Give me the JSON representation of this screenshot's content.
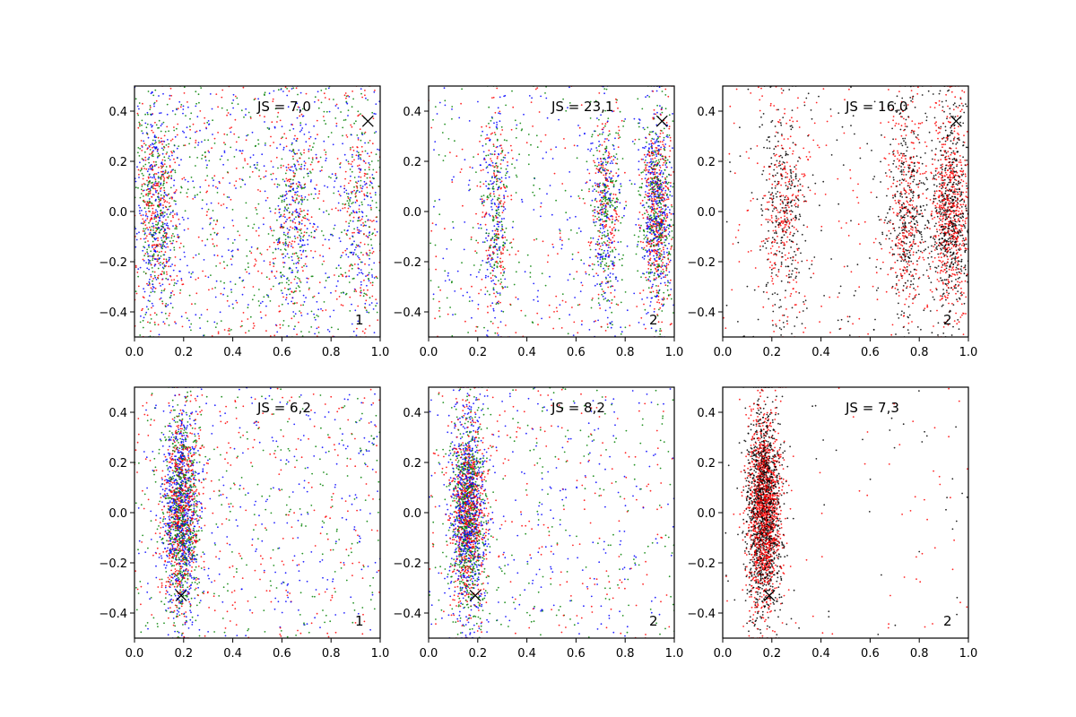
{
  "chart_data": [
    {
      "type": "scatter",
      "annotation": "JS = 7,0",
      "corner_label": "1",
      "xlim": [
        0.0,
        1.0
      ],
      "ylim": [
        -0.5,
        0.5
      ],
      "xticks": [
        "0.0",
        "0.2",
        "0.4",
        "0.6",
        "0.8",
        "1.0"
      ],
      "yticks": [
        "0.4",
        "0.2",
        "0.0",
        "−0.2",
        "−0.4"
      ],
      "marker": {
        "x": 0.95,
        "y": 0.36
      },
      "series_colors": [
        "#0000ff",
        "#ff0000",
        "#008000"
      ],
      "distribution": {
        "columns": [
          0.09,
          0.65,
          0.92
        ],
        "column_spread": 0.04,
        "background_fraction": 0.45
      }
    },
    {
      "type": "scatter",
      "annotation": "JS = 23,1",
      "corner_label": "2",
      "xlim": [
        0.0,
        1.0
      ],
      "ylim": [
        -0.5,
        0.5
      ],
      "xticks": [
        "0.0",
        "0.2",
        "0.4",
        "0.6",
        "0.8",
        "1.0"
      ],
      "yticks": [
        "0.4",
        "0.2",
        "0.0",
        "−0.2",
        "−0.4"
      ],
      "marker": {
        "x": 0.95,
        "y": 0.36
      },
      "series_colors": [
        "#0000ff",
        "#ff0000",
        "#008000"
      ],
      "distribution": {
        "columns": [
          0.93,
          0.72,
          0.27
        ],
        "column_spread": 0.03,
        "background_fraction": 0.2
      }
    },
    {
      "type": "scatter",
      "annotation": "JS = 16,0",
      "corner_label": "2",
      "xlim": [
        0.0,
        1.0
      ],
      "ylim": [
        -0.5,
        0.5
      ],
      "xticks": [
        "0.0",
        "0.2",
        "0.4",
        "0.6",
        "0.8",
        "1.0"
      ],
      "yticks": [
        "0.4",
        "0.2",
        "0.0",
        "−0.2",
        "−0.4"
      ],
      "marker": {
        "x": 0.95,
        "y": 0.36
      },
      "series_colors": [
        "#000000",
        "#ff0000"
      ],
      "distribution": {
        "columns": [
          0.93,
          0.75,
          0.25
        ],
        "column_spread": 0.04,
        "background_fraction": 0.15
      }
    },
    {
      "type": "scatter",
      "annotation": "JS = 6,2",
      "corner_label": "1",
      "xlim": [
        0.0,
        1.0
      ],
      "ylim": [
        -0.5,
        0.5
      ],
      "xticks": [
        "0.0",
        "0.2",
        "0.4",
        "0.6",
        "0.8",
        "1.0"
      ],
      "yticks": [
        "0.4",
        "0.2",
        "0.0",
        "−0.2",
        "−0.4"
      ],
      "marker": {
        "x": 0.19,
        "y": -0.33
      },
      "series_colors": [
        "#0000ff",
        "#ff0000",
        "#008000"
      ],
      "distribution": {
        "columns": [
          0.19
        ],
        "column_spread": 0.035,
        "background_fraction": 0.3
      }
    },
    {
      "type": "scatter",
      "annotation": "JS = 8,2",
      "corner_label": "2",
      "xlim": [
        0.0,
        1.0
      ],
      "ylim": [
        -0.5,
        0.5
      ],
      "xticks": [
        "0.0",
        "0.2",
        "0.4",
        "0.6",
        "0.8",
        "1.0"
      ],
      "yticks": [
        "0.4",
        "0.2",
        "0.0",
        "−0.2",
        "−0.4"
      ],
      "marker": {
        "x": 0.19,
        "y": -0.33
      },
      "series_colors": [
        "#0000ff",
        "#ff0000",
        "#008000"
      ],
      "distribution": {
        "columns": [
          0.16
        ],
        "column_spread": 0.035,
        "background_fraction": 0.25
      }
    },
    {
      "type": "scatter",
      "annotation": "JS = 7,3",
      "corner_label": "2",
      "xlim": [
        0.0,
        1.0
      ],
      "ylim": [
        -0.5,
        0.5
      ],
      "xticks": [
        "0.0",
        "0.2",
        "0.4",
        "0.6",
        "0.8",
        "1.0"
      ],
      "yticks": [
        "0.4",
        "0.2",
        "0.0",
        "−0.2",
        "−0.4"
      ],
      "marker": {
        "x": 0.19,
        "y": -0.33
      },
      "series_colors": [
        "#000000",
        "#ff0000"
      ],
      "distribution": {
        "columns": [
          0.17
        ],
        "column_spread": 0.035,
        "background_fraction": 0.04
      }
    }
  ]
}
